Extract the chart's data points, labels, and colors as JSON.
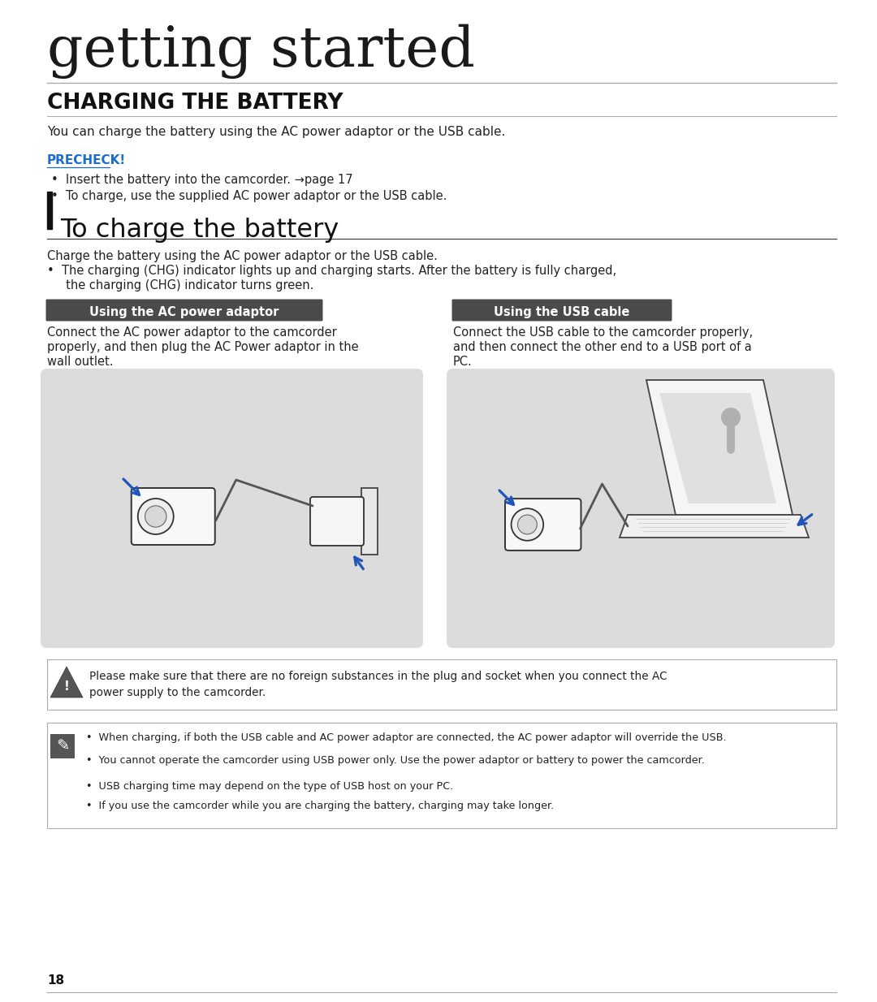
{
  "bg_color": "#ffffff",
  "title_text": "getting started",
  "section_title": "CHARGING THE BATTERY",
  "intro_text": "You can charge the battery using the AC power adaptor or the USB cable.",
  "precheck_label": "PRECHECK!",
  "precheck_color": "#1a6dcc",
  "bullet1": "Insert the battery into the camcorder. →page 17",
  "bullet2": "To charge, use the supplied AC power adaptor or the USB cable.",
  "subsection_title": "To charge the battery",
  "body1": "Charge the battery using the AC power adaptor or the USB cable.",
  "body2_line1": "•  The charging (CHG) indicator lights up and charging starts. After the battery is fully charged,",
  "body2_line2": "     the charging (CHG) indicator turns green.",
  "box1_label": "Using the AC power adaptor",
  "box2_label": "Using the USB cable",
  "box_bg": "#4a4a4a",
  "box_text_color": "#ffffff",
  "desc1_line1": "Connect the AC power adaptor to the camcorder",
  "desc1_line2": "properly, and then plug the AC Power adaptor in the",
  "desc1_line3": "wall outlet.",
  "desc2_line1": "Connect the USB cable to the camcorder properly,",
  "desc2_line2": "and then connect the other end to a USB port of a",
  "desc2_line3": "PC.",
  "img_bg": "#dcdcdc",
  "warning_text_line1": "Please make sure that there are no foreign substances in the plug and socket when you connect the AC",
  "warning_text_line2": "power supply to the camcorder.",
  "note_bullets": [
    "When charging, if both the USB cable and AC power adaptor are connected, the AC power adaptor will override the USB.",
    "You cannot operate the camcorder using USB power only. Use the power adaptor or battery to power the camcorder.",
    "USB charging time may depend on the type of USB host on your PC.",
    "If you use the camcorder while you are charging the battery, charging may take longer."
  ],
  "page_number": "18",
  "arrow_color": "#2255bb",
  "line_color": "#aaaaaa",
  "text_color": "#222222"
}
